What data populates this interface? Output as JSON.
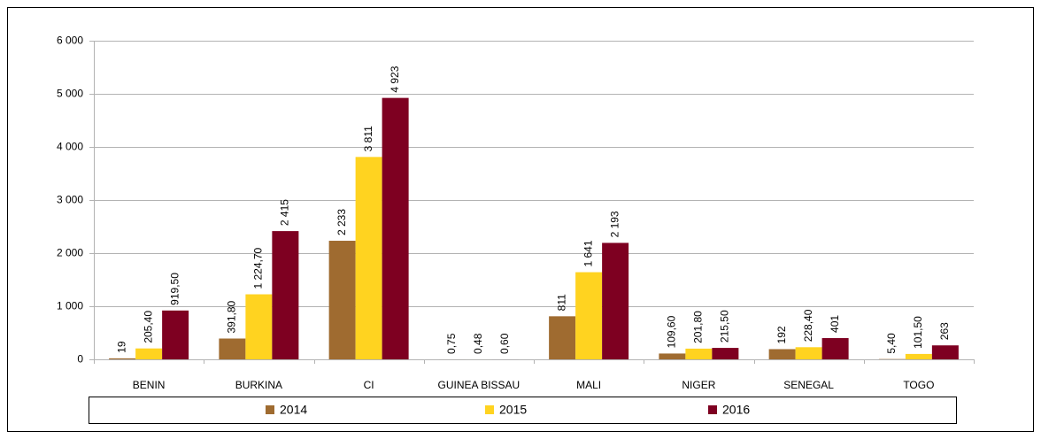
{
  "chart_data": {
    "type": "bar",
    "categories": [
      "BENIN",
      "BURKINA",
      "CI",
      "GUINEA BISSAU",
      "MALI",
      "NIGER",
      "SENEGAL",
      "TOGO"
    ],
    "series": [
      {
        "name": "2014",
        "color": "#9f6b30",
        "values": [
          19,
          391.8,
          2233,
          0.75,
          811,
          109.6,
          192,
          5.4
        ],
        "value_labels": [
          "19",
          "391,80",
          "2 233",
          "0,75",
          "811",
          "109,60",
          "192",
          "5,40"
        ]
      },
      {
        "name": "2015",
        "color": "#ffd320",
        "values": [
          205.4,
          1224.7,
          3811,
          0.48,
          1641,
          201.8,
          228.4,
          101.5
        ],
        "value_labels": [
          "205,40",
          "1 224,70",
          "3 811",
          "0,48",
          "1 641",
          "201,80",
          "228,40",
          "101,50"
        ]
      },
      {
        "name": "2016",
        "color": "#7e0021",
        "values": [
          919.5,
          2415,
          4923,
          0.6,
          2193,
          215.5,
          401,
          263
        ],
        "value_labels": [
          "919,50",
          "2 415",
          "4 923",
          "0,60",
          "2 193",
          "215,50",
          "401",
          "263"
        ]
      }
    ],
    "ylim": [
      0,
      6000
    ],
    "yticks": [
      0,
      {
        "value": 1000,
        "label": "1 000"
      },
      {
        "value": 2000,
        "label": "2 000"
      },
      {
        "value": 3000,
        "label": "3 000"
      },
      {
        "value": 4000,
        "label": "4 000"
      },
      {
        "value": 5000,
        "label": "5 000"
      },
      {
        "value": 6000,
        "label": "6 000"
      }
    ],
    "grid": true,
    "legend": "bottom"
  }
}
